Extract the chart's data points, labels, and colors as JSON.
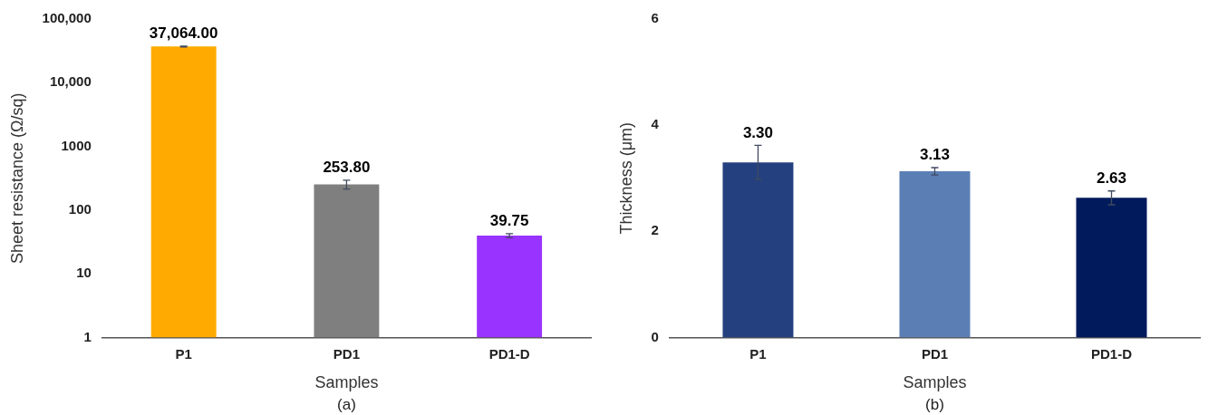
{
  "chart_data": [
    {
      "type": "bar",
      "xlabel": "Samples",
      "ylabel": "Sheet resistance (Ω/sq)",
      "categories": [
        "P1",
        "PD1",
        "PD1-D"
      ],
      "values": [
        37064,
        253.8,
        39.75
      ],
      "colors": [
        "#ffaa00",
        "#7f7f7f",
        "#9933ff"
      ],
      "errors": [
        600,
        40,
        3
      ],
      "value_labels": [
        "37,064.00",
        "253.80",
        "39.75"
      ],
      "log": "y",
      "ylim": [
        1,
        100000
      ],
      "yticks": [
        1,
        10,
        100,
        1000,
        {
          "value": 10000,
          "label": "10,000"
        },
        {
          "value": 100000,
          "label": "100,000"
        }
      ],
      "grid": false,
      "legend": false,
      "annotations": [
        "(a)"
      ]
    },
    {
      "type": "bar",
      "xlabel": "Samples",
      "ylabel": "Thickness (μm)",
      "categories": [
        "P1",
        "PD1",
        "PD1-D"
      ],
      "values": [
        3.3,
        3.13,
        2.63
      ],
      "colors": [
        "#25407f",
        "#5b7fb5",
        "#001a5c"
      ],
      "errors": [
        0.32,
        0.07,
        0.13
      ],
      "value_labels": [
        "3.30",
        "3.13",
        "2.63"
      ],
      "ylim": [
        0,
        6
      ],
      "yticks": [
        0,
        2,
        4,
        6
      ],
      "grid": false,
      "legend": false,
      "annotations": [
        "(b)"
      ]
    }
  ]
}
